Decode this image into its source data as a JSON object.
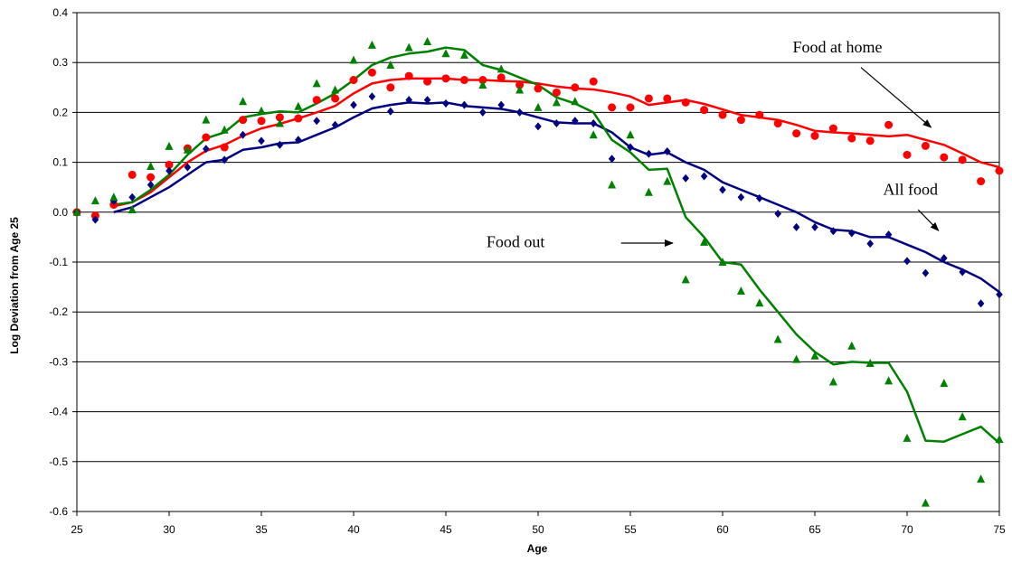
{
  "chart_data": {
    "type": "line",
    "xlabel": "Age",
    "ylabel": "Log Deviation from Age 25",
    "xlim": [
      25,
      75
    ],
    "ylim": [
      -0.6,
      0.4
    ],
    "xticks": [
      25,
      30,
      35,
      40,
      45,
      50,
      55,
      60,
      65,
      70,
      75
    ],
    "yticks": [
      0.4,
      0.3,
      0.2,
      0.1,
      0.0,
      -0.1,
      -0.2,
      -0.3,
      -0.4,
      -0.5,
      -0.6
    ],
    "ytick_labels": [
      "0.4",
      "0.3",
      "0.2",
      "0.1",
      "0.0",
      "-0.1",
      "-0.2",
      "-0.3",
      "-0.4",
      "-0.5",
      "-0.6"
    ],
    "grid": "horizontal",
    "series": [
      {
        "name": "Food at home",
        "color": "#ff0000",
        "marker": "circle",
        "points": [
          [
            25,
            0.0
          ],
          [
            26,
            -0.007
          ],
          [
            27,
            0.015
          ],
          [
            28,
            0.075
          ],
          [
            29,
            0.07
          ],
          [
            30,
            0.095
          ],
          [
            31,
            0.128
          ],
          [
            32,
            0.15
          ],
          [
            33,
            0.13
          ],
          [
            34,
            0.185
          ],
          [
            35,
            0.183
          ],
          [
            36,
            0.19
          ],
          [
            37,
            0.188
          ],
          [
            38,
            0.225
          ],
          [
            39,
            0.228
          ],
          [
            40,
            0.265
          ],
          [
            41,
            0.28
          ],
          [
            42,
            0.25
          ],
          [
            43,
            0.273
          ],
          [
            44,
            0.262
          ],
          [
            45,
            0.268
          ],
          [
            46,
            0.265
          ],
          [
            47,
            0.265
          ],
          [
            48,
            0.27
          ],
          [
            49,
            0.255
          ],
          [
            50,
            0.248
          ],
          [
            51,
            0.24
          ],
          [
            52,
            0.25
          ],
          [
            53,
            0.262
          ],
          [
            54,
            0.21
          ],
          [
            55,
            0.21
          ],
          [
            56,
            0.228
          ],
          [
            57,
            0.228
          ],
          [
            58,
            0.22
          ],
          [
            59,
            0.205
          ],
          [
            60,
            0.195
          ],
          [
            61,
            0.185
          ],
          [
            62,
            0.195
          ],
          [
            63,
            0.178
          ],
          [
            64,
            0.158
          ],
          [
            65,
            0.153
          ],
          [
            66,
            0.168
          ],
          [
            67,
            0.148
          ],
          [
            68,
            0.143
          ],
          [
            69,
            0.175
          ],
          [
            70,
            0.115
          ],
          [
            71,
            0.133
          ],
          [
            72,
            0.11
          ],
          [
            73,
            0.105
          ],
          [
            74,
            0.062
          ],
          [
            75,
            0.083
          ]
        ],
        "smoothed": [
          [
            27,
            0.012
          ],
          [
            28,
            0.02
          ],
          [
            29,
            0.04
          ],
          [
            30,
            0.07
          ],
          [
            31,
            0.1
          ],
          [
            32,
            0.123
          ],
          [
            33,
            0.135
          ],
          [
            34,
            0.153
          ],
          [
            35,
            0.168
          ],
          [
            36,
            0.177
          ],
          [
            37,
            0.188
          ],
          [
            38,
            0.2
          ],
          [
            39,
            0.213
          ],
          [
            40,
            0.238
          ],
          [
            41,
            0.258
          ],
          [
            42,
            0.265
          ],
          [
            43,
            0.268
          ],
          [
            44,
            0.268
          ],
          [
            45,
            0.268
          ],
          [
            46,
            0.265
          ],
          [
            47,
            0.265
          ],
          [
            48,
            0.263
          ],
          [
            49,
            0.262
          ],
          [
            50,
            0.258
          ],
          [
            51,
            0.252
          ],
          [
            52,
            0.248
          ],
          [
            53,
            0.246
          ],
          [
            54,
            0.24
          ],
          [
            55,
            0.232
          ],
          [
            56,
            0.215
          ],
          [
            57,
            0.22
          ],
          [
            58,
            0.225
          ],
          [
            59,
            0.217
          ],
          [
            60,
            0.206
          ],
          [
            61,
            0.195
          ],
          [
            62,
            0.19
          ],
          [
            63,
            0.185
          ],
          [
            64,
            0.175
          ],
          [
            65,
            0.163
          ],
          [
            66,
            0.16
          ],
          [
            67,
            0.158
          ],
          [
            68,
            0.155
          ],
          [
            69,
            0.152
          ],
          [
            70,
            0.155
          ],
          [
            71,
            0.145
          ],
          [
            72,
            0.135
          ],
          [
            73,
            0.118
          ],
          [
            74,
            0.1
          ],
          [
            75,
            0.09
          ]
        ]
      },
      {
        "name": "All food",
        "color": "#000080",
        "marker": "diamond",
        "points": [
          [
            25,
            0.0
          ],
          [
            26,
            -0.015
          ],
          [
            27,
            0.022
          ],
          [
            28,
            0.03
          ],
          [
            29,
            0.055
          ],
          [
            30,
            0.083
          ],
          [
            31,
            0.09
          ],
          [
            32,
            0.127
          ],
          [
            33,
            0.105
          ],
          [
            34,
            0.155
          ],
          [
            35,
            0.143
          ],
          [
            36,
            0.135
          ],
          [
            37,
            0.145
          ],
          [
            38,
            0.183
          ],
          [
            39,
            0.175
          ],
          [
            40,
            0.215
          ],
          [
            41,
            0.232
          ],
          [
            42,
            0.202
          ],
          [
            43,
            0.225
          ],
          [
            44,
            0.225
          ],
          [
            45,
            0.218
          ],
          [
            46,
            0.215
          ],
          [
            47,
            0.2
          ],
          [
            48,
            0.215
          ],
          [
            49,
            0.2
          ],
          [
            50,
            0.172
          ],
          [
            51,
            0.178
          ],
          [
            52,
            0.183
          ],
          [
            53,
            0.178
          ],
          [
            54,
            0.107
          ],
          [
            55,
            0.13
          ],
          [
            56,
            0.117
          ],
          [
            57,
            0.122
          ],
          [
            58,
            0.068
          ],
          [
            59,
            0.072
          ],
          [
            60,
            0.045
          ],
          [
            61,
            0.03
          ],
          [
            62,
            0.028
          ],
          [
            63,
            -0.003
          ],
          [
            64,
            -0.03
          ],
          [
            65,
            -0.03
          ],
          [
            66,
            -0.038
          ],
          [
            67,
            -0.042
          ],
          [
            68,
            -0.063
          ],
          [
            69,
            -0.045
          ],
          [
            70,
            -0.098
          ],
          [
            71,
            -0.122
          ],
          [
            72,
            -0.092
          ],
          [
            73,
            -0.12
          ],
          [
            74,
            -0.183
          ],
          [
            75,
            -0.165
          ]
        ],
        "smoothed": [
          [
            27,
            0.0
          ],
          [
            28,
            0.01
          ],
          [
            29,
            0.03
          ],
          [
            30,
            0.05
          ],
          [
            31,
            0.075
          ],
          [
            32,
            0.1
          ],
          [
            33,
            0.105
          ],
          [
            34,
            0.125
          ],
          [
            35,
            0.13
          ],
          [
            36,
            0.138
          ],
          [
            37,
            0.14
          ],
          [
            38,
            0.155
          ],
          [
            39,
            0.17
          ],
          [
            40,
            0.19
          ],
          [
            41,
            0.208
          ],
          [
            42,
            0.215
          ],
          [
            43,
            0.22
          ],
          [
            44,
            0.218
          ],
          [
            45,
            0.22
          ],
          [
            46,
            0.213
          ],
          [
            47,
            0.21
          ],
          [
            48,
            0.207
          ],
          [
            49,
            0.2
          ],
          [
            50,
            0.19
          ],
          [
            51,
            0.18
          ],
          [
            52,
            0.178
          ],
          [
            53,
            0.178
          ],
          [
            54,
            0.16
          ],
          [
            55,
            0.13
          ],
          [
            56,
            0.115
          ],
          [
            57,
            0.12
          ],
          [
            58,
            0.1
          ],
          [
            59,
            0.085
          ],
          [
            60,
            0.06
          ],
          [
            61,
            0.045
          ],
          [
            62,
            0.03
          ],
          [
            63,
            0.015
          ],
          [
            64,
            0.0
          ],
          [
            65,
            -0.02
          ],
          [
            66,
            -0.035
          ],
          [
            67,
            -0.038
          ],
          [
            68,
            -0.05
          ],
          [
            69,
            -0.05
          ],
          [
            70,
            -0.065
          ],
          [
            71,
            -0.08
          ],
          [
            72,
            -0.1
          ],
          [
            73,
            -0.115
          ],
          [
            74,
            -0.133
          ],
          [
            75,
            -0.16
          ]
        ]
      },
      {
        "name": "Food out",
        "color": "#008000",
        "marker": "triangle",
        "points": [
          [
            25,
            0.0
          ],
          [
            26,
            0.023
          ],
          [
            27,
            0.03
          ],
          [
            28,
            0.005
          ],
          [
            29,
            0.092
          ],
          [
            30,
            0.132
          ],
          [
            31,
            0.125
          ],
          [
            32,
            0.185
          ],
          [
            33,
            0.165
          ],
          [
            34,
            0.222
          ],
          [
            35,
            0.203
          ],
          [
            36,
            0.178
          ],
          [
            37,
            0.212
          ],
          [
            38,
            0.258
          ],
          [
            39,
            0.245
          ],
          [
            40,
            0.305
          ],
          [
            41,
            0.335
          ],
          [
            42,
            0.295
          ],
          [
            43,
            0.33
          ],
          [
            44,
            0.342
          ],
          [
            45,
            0.318
          ],
          [
            46,
            0.315
          ],
          [
            47,
            0.255
          ],
          [
            48,
            0.287
          ],
          [
            49,
            0.245
          ],
          [
            50,
            0.21
          ],
          [
            51,
            0.22
          ],
          [
            52,
            0.222
          ],
          [
            53,
            0.155
          ],
          [
            54,
            0.055
          ],
          [
            55,
            0.155
          ],
          [
            56,
            0.04
          ],
          [
            57,
            0.062
          ],
          [
            58,
            -0.135
          ],
          [
            59,
            -0.06
          ],
          [
            60,
            -0.1
          ],
          [
            61,
            -0.158
          ],
          [
            62,
            -0.182
          ],
          [
            63,
            -0.255
          ],
          [
            64,
            -0.295
          ],
          [
            65,
            -0.288
          ],
          [
            66,
            -0.34
          ],
          [
            67,
            -0.268
          ],
          [
            68,
            -0.303
          ],
          [
            69,
            -0.338
          ],
          [
            70,
            -0.453
          ],
          [
            71,
            -0.583
          ],
          [
            72,
            -0.343
          ],
          [
            73,
            -0.41
          ],
          [
            74,
            -0.535
          ],
          [
            75,
            -0.455
          ]
        ],
        "smoothed": [
          [
            27,
            0.015
          ],
          [
            28,
            0.02
          ],
          [
            29,
            0.045
          ],
          [
            30,
            0.075
          ],
          [
            31,
            0.115
          ],
          [
            32,
            0.148
          ],
          [
            33,
            0.16
          ],
          [
            34,
            0.19
          ],
          [
            35,
            0.197
          ],
          [
            36,
            0.202
          ],
          [
            37,
            0.2
          ],
          [
            38,
            0.218
          ],
          [
            39,
            0.238
          ],
          [
            40,
            0.265
          ],
          [
            41,
            0.295
          ],
          [
            42,
            0.31
          ],
          [
            43,
            0.318
          ],
          [
            44,
            0.322
          ],
          [
            45,
            0.33
          ],
          [
            46,
            0.325
          ],
          [
            47,
            0.295
          ],
          [
            48,
            0.285
          ],
          [
            49,
            0.27
          ],
          [
            50,
            0.255
          ],
          [
            51,
            0.23
          ],
          [
            52,
            0.218
          ],
          [
            53,
            0.2
          ],
          [
            54,
            0.145
          ],
          [
            55,
            0.12
          ],
          [
            56,
            0.085
          ],
          [
            57,
            0.087
          ],
          [
            58,
            -0.01
          ],
          [
            59,
            -0.05
          ],
          [
            60,
            -0.1
          ],
          [
            61,
            -0.105
          ],
          [
            62,
            -0.155
          ],
          [
            63,
            -0.2
          ],
          [
            64,
            -0.245
          ],
          [
            65,
            -0.28
          ],
          [
            66,
            -0.305
          ],
          [
            67,
            -0.3
          ],
          [
            68,
            -0.302
          ],
          [
            69,
            -0.302
          ],
          [
            70,
            -0.36
          ],
          [
            71,
            -0.458
          ],
          [
            72,
            -0.46
          ],
          [
            73,
            -0.445
          ],
          [
            74,
            -0.43
          ],
          [
            75,
            -0.463
          ]
        ]
      }
    ],
    "annotations": [
      {
        "text": "Food at home",
        "series": "Food at home"
      },
      {
        "text": "All food",
        "series": "All food"
      },
      {
        "text": "Food out",
        "series": "Food out"
      }
    ]
  }
}
